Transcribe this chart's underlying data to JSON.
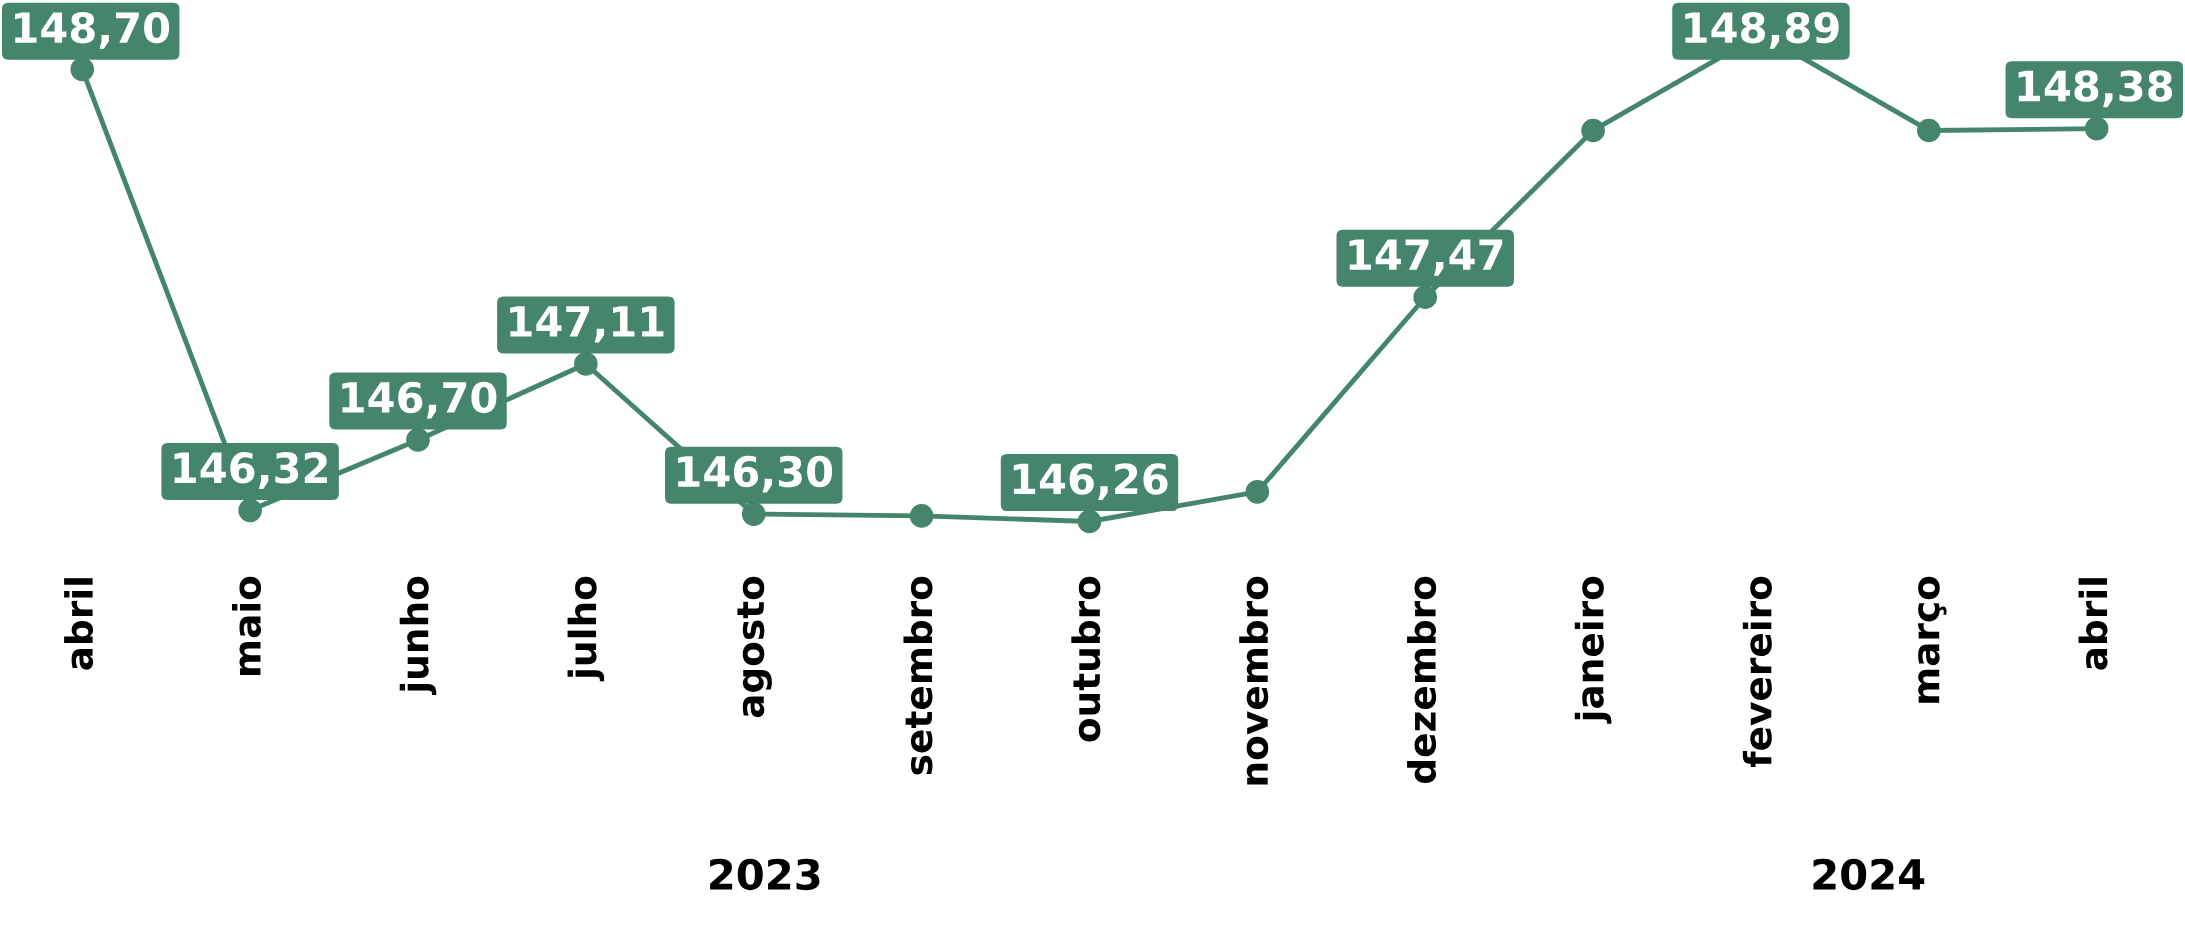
{
  "chart_data": {
    "type": "line",
    "categories": [
      "abril",
      "maio",
      "junho",
      "julho",
      "agosto",
      "setembro",
      "outubro",
      "novembro",
      "dezembro",
      "janeiro",
      "fevereiro",
      "março",
      "abril"
    ],
    "series": [
      {
        "color": "#44856b",
        "values": [
          148.7,
          146.32,
          146.7,
          147.11,
          146.3,
          146.29,
          146.26,
          146.42,
          147.47,
          148.37,
          148.89,
          148.37,
          148.38
        ],
        "value_labels": [
          "148,70",
          "146,32",
          "146,70",
          "147,11",
          "146,30",
          null,
          "146,26",
          null,
          "147,47",
          null,
          "148,89",
          null,
          "148,38"
        ]
      }
    ],
    "tick_labels": "x",
    "grid": false,
    "legend": false,
    "marker": "circle",
    "line_style": "solid",
    "annotations": [
      "2023",
      "2024"
    ]
  }
}
